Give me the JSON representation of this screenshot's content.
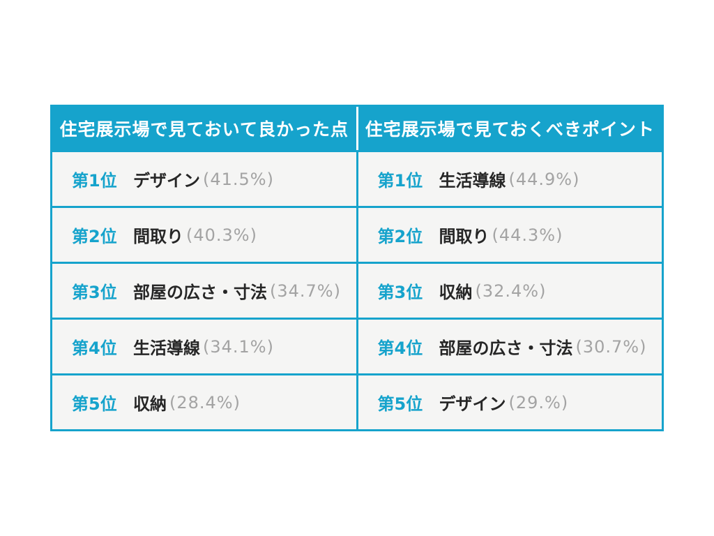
{
  "colors": {
    "accent": "#16A3CC",
    "cell_bg": "#F5F5F4",
    "name_color": "#262626",
    "percent_color": "#A3A3A3",
    "header_text": "#FFFFFF",
    "page_bg": "#FFFFFF"
  },
  "table": {
    "columns": [
      {
        "header": "住宅展示場で見ておいて良かった点",
        "rows": [
          {
            "rank": "第1位",
            "name": "デザイン",
            "percent": "(41.5%)"
          },
          {
            "rank": "第2位",
            "name": "間取り",
            "percent": "(40.3%)"
          },
          {
            "rank": "第3位",
            "name": "部屋の広さ・寸法",
            "percent": "(34.7%)"
          },
          {
            "rank": "第4位",
            "name": "生活導線",
            "percent": "(34.1%)"
          },
          {
            "rank": "第5位",
            "name": "収納",
            "percent": "(28.4%)"
          }
        ]
      },
      {
        "header": "住宅展示場で見ておくべきポイント",
        "rows": [
          {
            "rank": "第1位",
            "name": "生活導線",
            "percent": "(44.9%)"
          },
          {
            "rank": "第2位",
            "name": "間取り",
            "percent": "(44.3%)"
          },
          {
            "rank": "第3位",
            "name": "収納",
            "percent": "(32.4%)"
          },
          {
            "rank": "第4位",
            "name": "部屋の広さ・寸法",
            "percent": "(30.7%)"
          },
          {
            "rank": "第5位",
            "name": "デザイン",
            "percent": "(29.%)"
          }
        ]
      }
    ]
  },
  "chart_data": [
    {
      "type": "table",
      "title": "住宅展示場で見ておいて良かった点",
      "categories": [
        "第1位",
        "第2位",
        "第3位",
        "第4位",
        "第5位"
      ],
      "items": [
        "デザイン",
        "間取り",
        "部屋の広さ・寸法",
        "生活導線",
        "収納"
      ],
      "values": [
        41.5,
        40.3,
        34.7,
        34.1,
        28.4
      ],
      "unit": "%"
    },
    {
      "type": "table",
      "title": "住宅展示場で見ておくべきポイント",
      "categories": [
        "第1位",
        "第2位",
        "第3位",
        "第4位",
        "第5位"
      ],
      "items": [
        "生活導線",
        "間取り",
        "収納",
        "部屋の広さ・寸法",
        "デザイン"
      ],
      "values": [
        44.9,
        44.3,
        32.4,
        30.7,
        29.0
      ],
      "unit": "%"
    }
  ]
}
